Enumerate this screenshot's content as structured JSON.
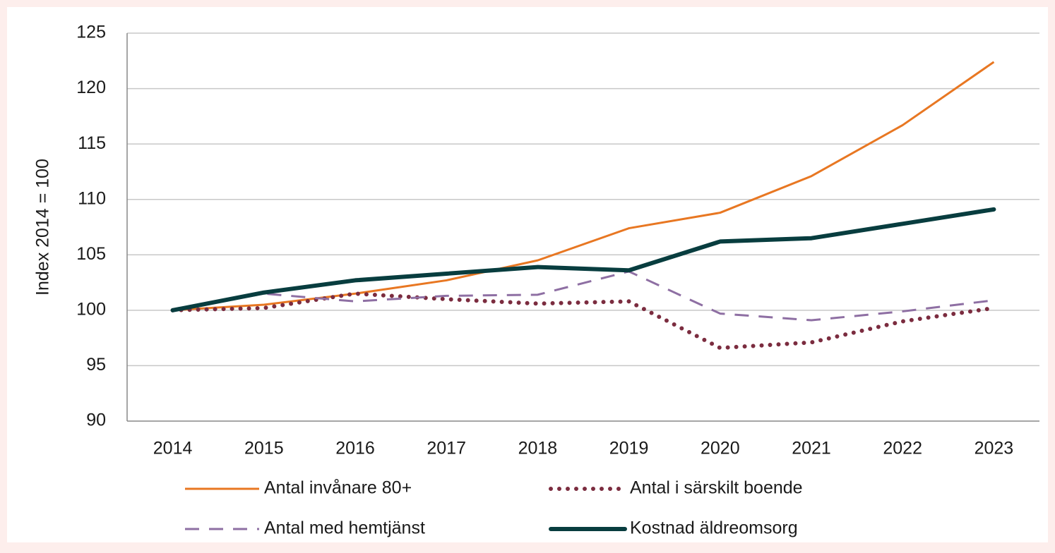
{
  "chart_data": {
    "type": "line",
    "y_label": "Index 2014 = 100",
    "categories": [
      "2014",
      "2015",
      "2016",
      "2017",
      "2018",
      "2019",
      "2020",
      "2021",
      "2022",
      "2023"
    ],
    "series": [
      {
        "name": "Antal invånare 80+",
        "color": "#e87722",
        "line_style": "solid",
        "values": [
          100,
          100.5,
          101.5,
          102.7,
          104.5,
          107.4,
          108.8,
          112.1,
          116.7,
          122.4
        ]
      },
      {
        "name": "Antal i särskilt boende",
        "color": "#7b2c3f",
        "line_style": "dotted",
        "values": [
          100,
          100.2,
          101.5,
          101.0,
          100.6,
          100.8,
          96.6,
          97.1,
          99.0,
          100.2
        ]
      },
      {
        "name": "Antal med hemtjänst",
        "color": "#8e6fa3",
        "line_style": "dashed",
        "values": [
          100,
          101.5,
          100.8,
          101.3,
          101.4,
          103.5,
          99.7,
          99.1,
          99.9,
          100.9
        ]
      },
      {
        "name": "Kostnad äldreomsorg",
        "color": "#083d3f",
        "line_style": "thick",
        "values": [
          100,
          101.6,
          102.7,
          103.3,
          103.9,
          103.6,
          106.2,
          106.5,
          107.8,
          109.1
        ]
      }
    ],
    "ylim": [
      90,
      125
    ],
    "yticks": [
      90,
      95,
      100,
      105,
      110,
      115,
      120,
      125
    ],
    "grid": true
  }
}
